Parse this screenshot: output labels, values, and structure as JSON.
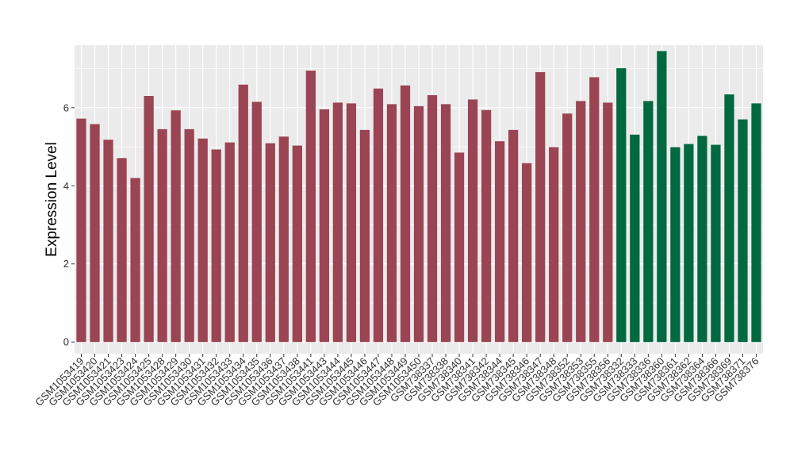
{
  "chart_data": {
    "type": "bar",
    "title": "",
    "xlabel": "",
    "ylabel": "Expression Level",
    "ylim": [
      -0.3,
      7.6
    ],
    "yticks": [
      0,
      2,
      4,
      6
    ],
    "grid": true,
    "background": "#EBEBEB",
    "gridline_color": "#FFFFFF",
    "categories": [
      "GSM1053419",
      "GSM1053420",
      "GSM1053421",
      "GSM1053423",
      "GSM1053424",
      "GSM1053425",
      "GSM1053428",
      "GSM1053429",
      "GSM1053430",
      "GSM1053431",
      "GSM1053432",
      "GSM1053433",
      "GSM1053434",
      "GSM1053435",
      "GSM1053436",
      "GSM1053437",
      "GSM1053438",
      "GSM1053441",
      "GSM1053443",
      "GSM1053444",
      "GSM1053445",
      "GSM1053446",
      "GSM1053447",
      "GSM1053448",
      "GSM1053449",
      "GSM1053450",
      "GSM738337",
      "GSM738338",
      "GSM738340",
      "GSM738341",
      "GSM738342",
      "GSM738344",
      "GSM738345",
      "GSM738346",
      "GSM738347",
      "GSM738348",
      "GSM738352",
      "GSM738353",
      "GSM738355",
      "GSM738356",
      "GSM738332",
      "GSM738333",
      "GSM738336",
      "GSM738360",
      "GSM738361",
      "GSM738362",
      "GSM738364",
      "GSM738366",
      "GSM738369",
      "GSM738371",
      "GSM738376"
    ],
    "values": [
      5.72,
      5.58,
      5.18,
      4.71,
      4.2,
      6.3,
      5.45,
      5.93,
      5.45,
      5.21,
      4.93,
      5.11,
      6.59,
      6.15,
      5.09,
      5.26,
      5.03,
      6.95,
      5.96,
      6.13,
      6.11,
      5.43,
      6.49,
      6.09,
      6.57,
      6.04,
      6.32,
      6.09,
      4.85,
      6.21,
      5.94,
      5.14,
      5.43,
      4.58,
      6.91,
      4.99,
      5.85,
      6.17,
      6.78,
      6.13,
      7.01,
      5.31,
      6.17,
      7.45,
      4.99,
      5.07,
      5.28,
      5.05,
      6.34,
      5.7,
      6.11
    ],
    "group_sizes": [
      40,
      11
    ],
    "colors": [
      "#9B4453",
      "#006940"
    ]
  }
}
